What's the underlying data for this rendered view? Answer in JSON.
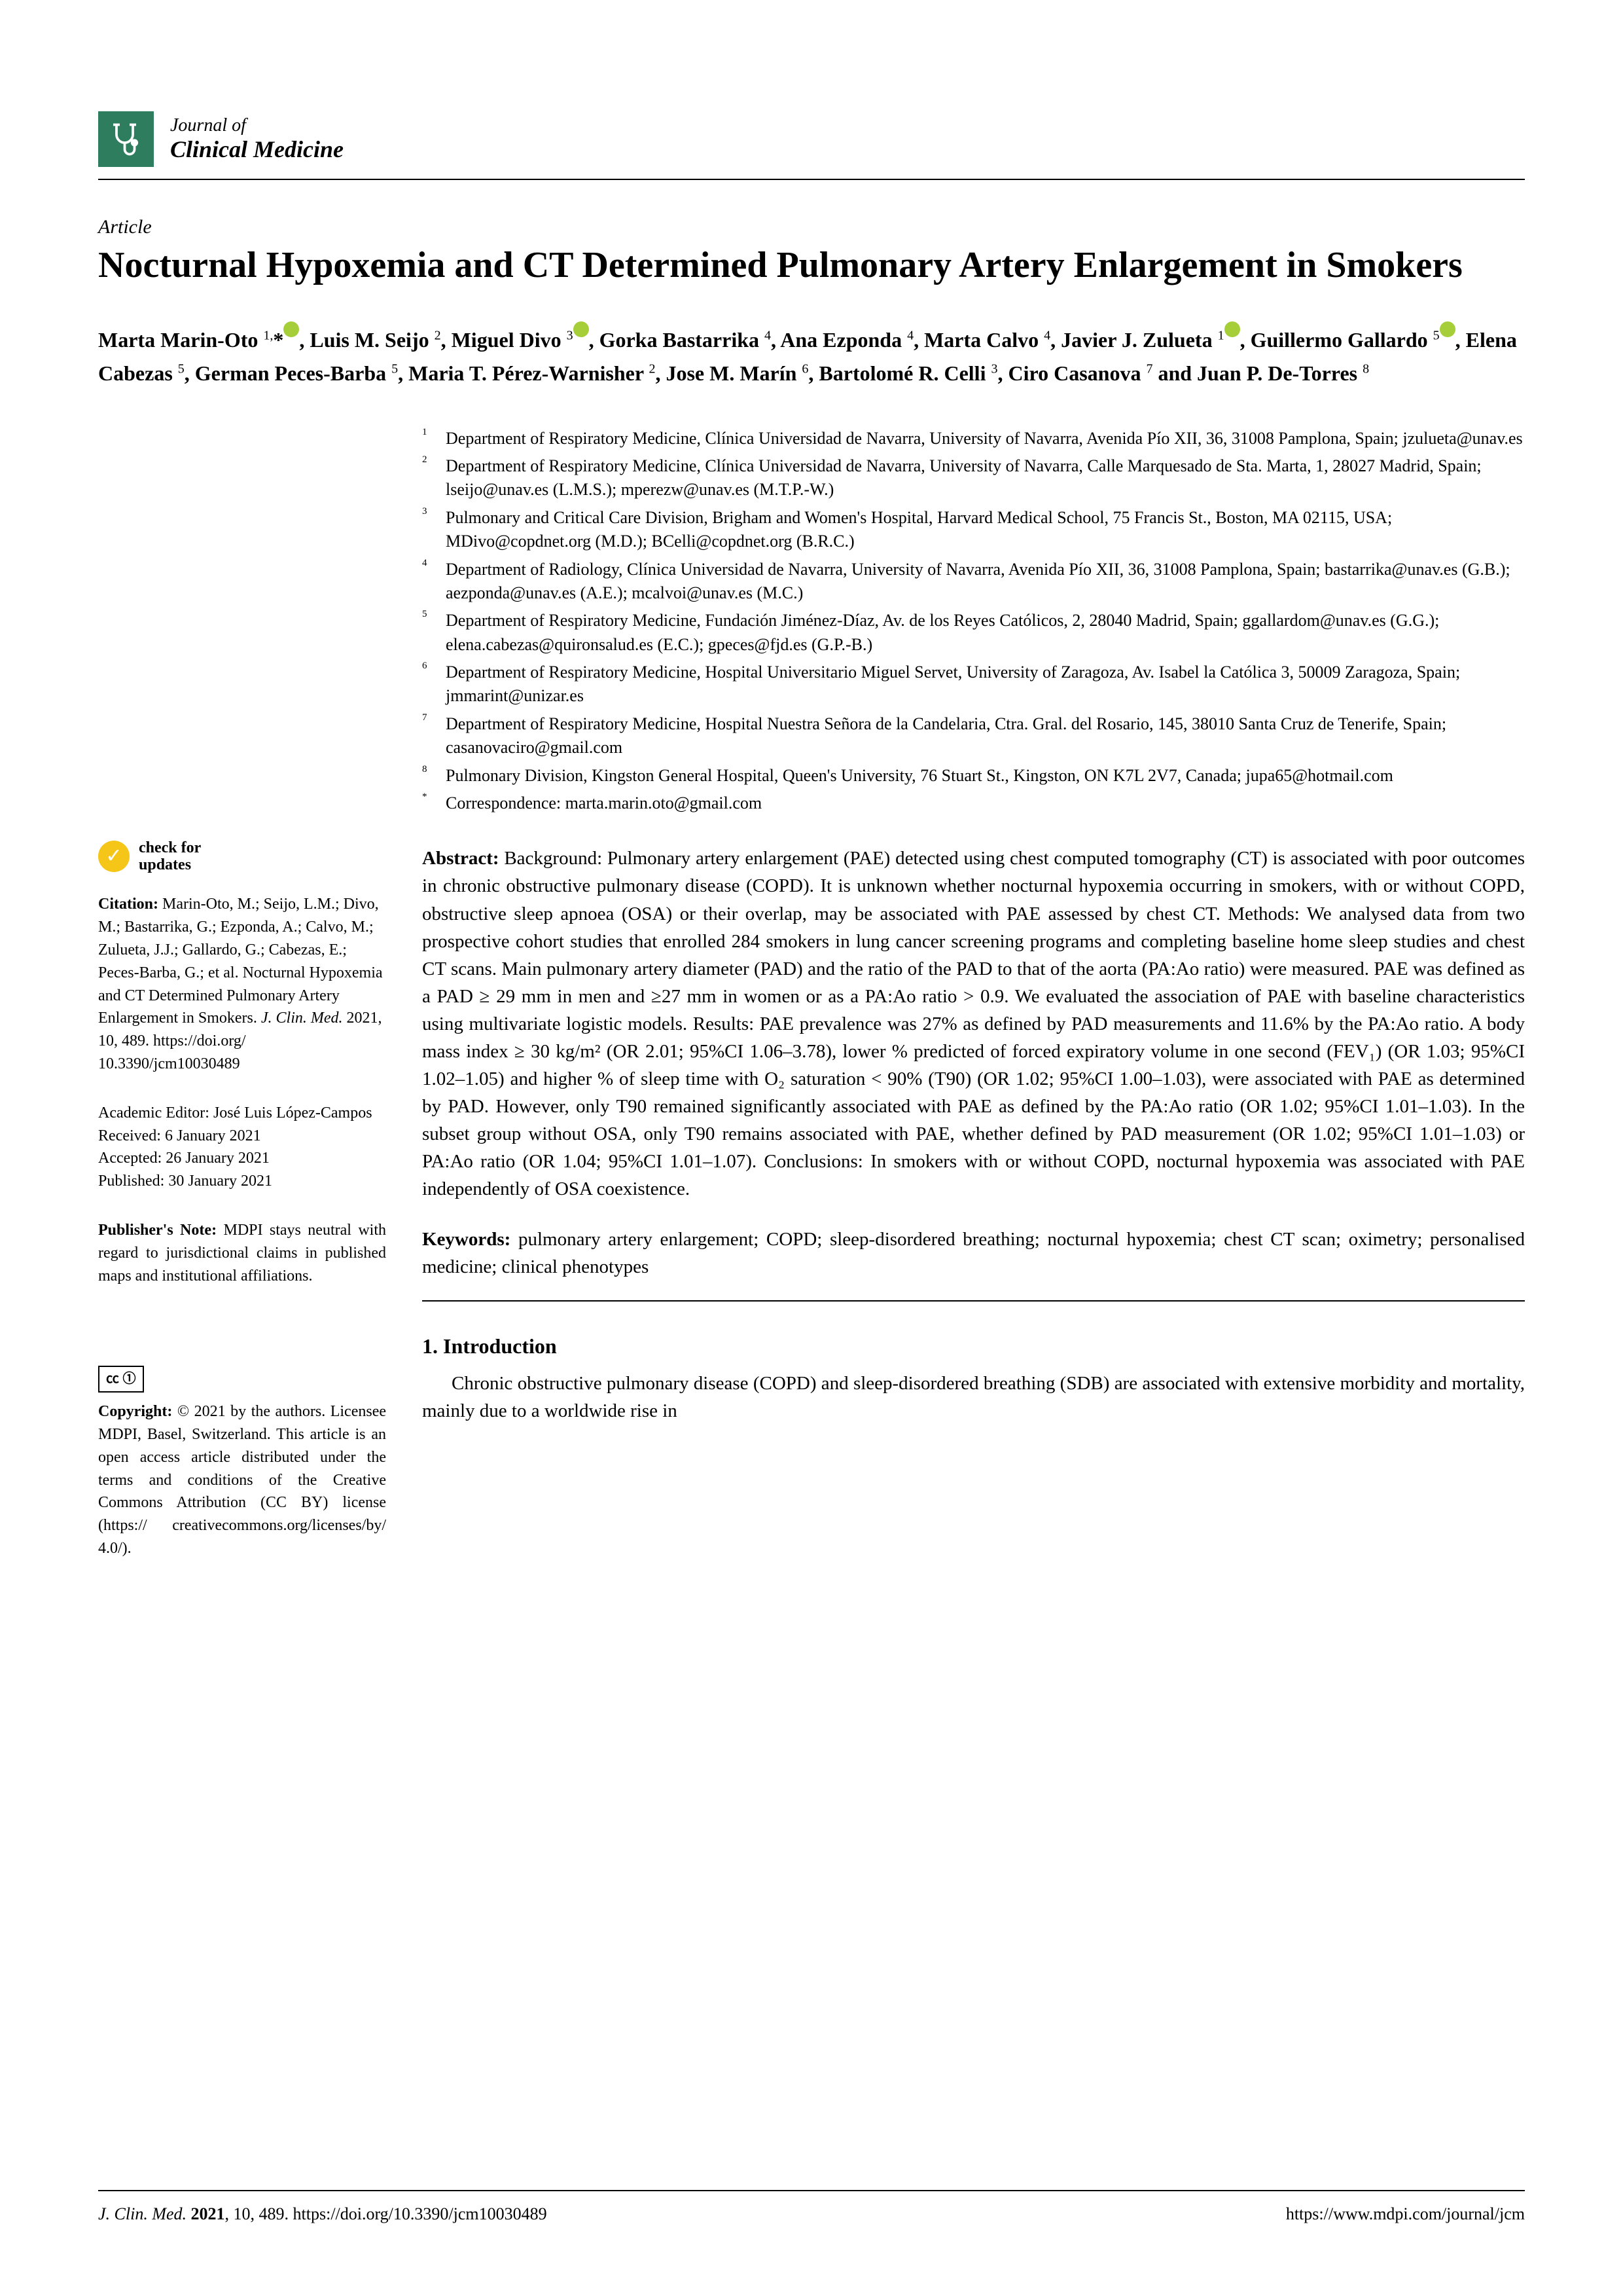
{
  "journal": {
    "prefix": "Journal of",
    "name": "Clinical Medicine"
  },
  "article_type": "Article",
  "title": "Nocturnal Hypoxemia and CT Determined Pulmonary Artery Enlargement in Smokers",
  "authors_html": "Marta Marin-Oto <sup>1,</sup>*[O], Luis M. Seijo <sup>2</sup>, Miguel Divo <sup>3</sup>[O], Gorka Bastarrika <sup>4</sup>, Ana Ezponda <sup>4</sup>, Marta Calvo <sup>4</sup>, Javier J. Zulueta <sup>1</sup>[O], Guillermo Gallardo <sup>5</sup>[O], Elena Cabezas <sup>5</sup>, German Peces-Barba <sup>5</sup>, Maria T. Pérez-Warnisher <sup>2</sup>, Jose M. Marín <sup>6</sup>, Bartolomé R. Celli <sup>3</sup>, Ciro Casanova <sup>7</sup> and Juan P. De-Torres <sup>8</sup>",
  "affiliations": [
    {
      "n": "1",
      "t": "Department of Respiratory Medicine, Clínica Universidad de Navarra, University of Navarra, Avenida Pío XII, 36, 31008 Pamplona, Spain; jzulueta@unav.es"
    },
    {
      "n": "2",
      "t": "Department of Respiratory Medicine, Clínica Universidad de Navarra, University of Navarra, Calle Marquesado de Sta. Marta, 1, 28027 Madrid, Spain; lseijo@unav.es (L.M.S.); mperezw@unav.es (M.T.P.-W.)"
    },
    {
      "n": "3",
      "t": "Pulmonary and Critical Care Division, Brigham and Women's Hospital, Harvard Medical School, 75 Francis St., Boston, MA 02115, USA; MDivo@copdnet.org (M.D.); BCelli@copdnet.org (B.R.C.)"
    },
    {
      "n": "4",
      "t": "Department of Radiology, Clínica Universidad de Navarra, University of Navarra, Avenida Pío XII, 36, 31008 Pamplona, Spain; bastarrika@unav.es (G.B.); aezponda@unav.es (A.E.); mcalvoi@unav.es (M.C.)"
    },
    {
      "n": "5",
      "t": "Department of Respiratory Medicine, Fundación Jiménez-Díaz, Av. de los Reyes Católicos, 2, 28040 Madrid, Spain; ggallardom@unav.es (G.G.); elena.cabezas@quironsalud.es (E.C.); gpeces@fjd.es (G.P.-B.)"
    },
    {
      "n": "6",
      "t": "Department of Respiratory Medicine, Hospital Universitario Miguel Servet, University of Zaragoza, Av. Isabel la Católica 3, 50009 Zaragoza, Spain; jmmarint@unizar.es"
    },
    {
      "n": "7",
      "t": "Department of Respiratory Medicine, Hospital Nuestra Señora de la Candelaria, Ctra. Gral. del Rosario, 145, 38010 Santa Cruz de Tenerife, Spain; casanovaciro@gmail.com"
    },
    {
      "n": "8",
      "t": "Pulmonary Division, Kingston General Hospital, Queen's University, 76 Stuart St., Kingston, ON K7L 2V7, Canada; jupa65@hotmail.com"
    },
    {
      "n": "*",
      "t": "Correspondence: marta.marin.oto@gmail.com"
    }
  ],
  "check_updates": {
    "line1": "check for",
    "line2": "updates"
  },
  "citation": {
    "label": "Citation:",
    "text": " Marin-Oto, M.; Seijo, L.M.; Divo, M.; Bastarrika, G.; Ezponda, A.; Calvo, M.; Zulueta, J.J.; Gallardo, G.; Cabezas, E.; Peces-Barba, G.; et al. Nocturnal Hypoxemia and CT Determined Pulmonary Artery Enlargement in Smokers. ",
    "journal_ref": "J. Clin. Med.",
    "ref_tail": " 2021, 10, 489. https://doi.org/ 10.3390/jcm10030489"
  },
  "editor": {
    "label": "Academic Editor: ",
    "name": "José Luis López-Campos",
    "received": "Received: 6 January 2021",
    "accepted": "Accepted: 26 January 2021",
    "published": "Published: 30 January 2021"
  },
  "publishers_note": {
    "label": "Publisher's Note:",
    "text": " MDPI stays neutral with regard to jurisdictional claims in published maps and institutional affiliations."
  },
  "copyright": {
    "label": "Copyright:",
    "text": " © 2021 by the authors. Licensee MDPI, Basel, Switzerland. This article is an open access article distributed under the terms and conditions of the Creative Commons Attribution (CC BY) license (https:// creativecommons.org/licenses/by/ 4.0/)."
  },
  "abstract": {
    "label": "Abstract:",
    "text": " Background: Pulmonary artery enlargement (PAE) detected using chest computed tomography (CT) is associated with poor outcomes in chronic obstructive pulmonary disease (COPD). It is unknown whether nocturnal hypoxemia occurring in smokers, with or without COPD, obstructive sleep apnoea (OSA) or their overlap, may be associated with PAE assessed by chest CT. Methods: We analysed data from two prospective cohort studies that enrolled 284 smokers in lung cancer screening programs and completing baseline home sleep studies and chest CT scans. Main pulmonary artery diameter (PAD) and the ratio of the PAD to that of the aorta (PA:Ao ratio) were measured. PAE was defined as a PAD ≥ 29 mm in men and ≥27 mm in women or as a PA:Ao ratio > 0.9. We evaluated the association of PAE with baseline characteristics using multivariate logistic models. Results: PAE prevalence was 27% as defined by PAD measurements and 11.6% by the PA:Ao ratio. A body mass index ≥ 30 kg/m² (OR 2.01; 95%CI 1.06–3.78), lower % predicted of forced expiratory volume in one second (FEV₁) (OR 1.03; 95%CI 1.02–1.05) and higher % of sleep time with O₂ saturation < 90% (T90) (OR 1.02; 95%CI 1.00–1.03), were associated with PAE as determined by PAD. However, only T90 remained significantly associated with PAE as defined by the PA:Ao ratio (OR 1.02; 95%CI 1.01–1.03). In the subset group without OSA, only T90 remains associated with PAE, whether defined by PAD measurement (OR 1.02; 95%CI 1.01–1.03) or PA:Ao ratio (OR 1.04; 95%CI 1.01–1.07). Conclusions: In smokers with or without COPD, nocturnal hypoxemia was associated with PAE independently of OSA coexistence."
  },
  "keywords": {
    "label": "Keywords:",
    "text": " pulmonary artery enlargement; COPD; sleep-disordered breathing; nocturnal hypoxemia; chest CT scan; oximetry; personalised medicine; clinical phenotypes"
  },
  "section": {
    "heading": "1. Introduction",
    "body": "Chronic obstructive pulmonary disease (COPD) and sleep-disordered breathing (SDB) are associated with extensive morbidity and mortality, mainly due to a worldwide rise in"
  },
  "footer": {
    "left_italic": "J. Clin. Med. ",
    "left_bold": "2021",
    "left_tail": ", 10, 489. https://doi.org/10.3390/jcm10030489",
    "right": "https://www.mdpi.com/journal/jcm"
  }
}
